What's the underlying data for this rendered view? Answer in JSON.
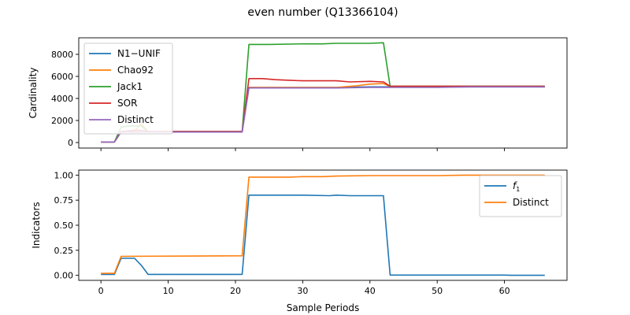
{
  "figure_title": "even number (Q13366104)",
  "chart_data": [
    {
      "type": "line",
      "xlabel": "",
      "ylabel": "Cardinality",
      "xlim": [
        -3.3,
        69.3
      ],
      "ylim": [
        -500,
        9500
      ],
      "xticks": [
        0,
        10,
        20,
        30,
        40,
        50,
        60
      ],
      "show_x_ticklabels": false,
      "yticks": [
        0,
        2000,
        4000,
        6000,
        8000
      ],
      "ytick_labels": [
        "0",
        "2000",
        "4000",
        "6000",
        "8000"
      ],
      "legend_position": "top-left",
      "series": [
        {
          "name": "N1−UNIF",
          "color": "#1f77b4",
          "x": [
            0,
            2,
            3,
            4,
            5,
            6,
            7,
            21,
            22,
            25,
            30,
            35,
            40,
            42,
            43,
            50,
            55,
            60,
            66
          ],
          "y": [
            50,
            50,
            950,
            950,
            950,
            950,
            950,
            950,
            5000,
            5000,
            5000,
            5000,
            5050,
            5050,
            5050,
            5050,
            5050,
            5050,
            5050
          ]
        },
        {
          "name": "Chao92",
          "color": "#ff7f0e",
          "x": [
            0,
            2,
            3,
            4,
            5,
            6,
            7,
            21,
            22,
            25,
            30,
            35,
            38,
            40,
            42,
            43,
            50,
            55,
            60,
            66
          ],
          "y": [
            50,
            50,
            1000,
            1050,
            1050,
            1700,
            1000,
            1000,
            5000,
            5000,
            5000,
            5000,
            5150,
            5300,
            5350,
            5100,
            5100,
            5100,
            5100,
            5100
          ]
        },
        {
          "name": "Jack1",
          "color": "#2ca02c",
          "x": [
            0,
            2,
            3,
            4,
            5,
            6,
            7,
            21,
            22,
            25,
            30,
            33,
            35,
            38,
            40,
            42,
            43,
            50,
            55,
            60,
            66
          ],
          "y": [
            50,
            50,
            1400,
            1500,
            1500,
            1500,
            1000,
            1000,
            8900,
            8900,
            8950,
            8950,
            9000,
            9000,
            9000,
            9050,
            5100,
            5100,
            5100,
            5100,
            5100
          ]
        },
        {
          "name": "SOR",
          "color": "#d62728",
          "x": [
            0,
            2,
            3,
            4,
            5,
            6,
            7,
            21,
            22,
            24,
            26,
            28,
            30,
            35,
            37,
            40,
            42,
            43,
            50,
            55,
            60,
            66
          ],
          "y": [
            50,
            50,
            1000,
            1050,
            1100,
            1100,
            1000,
            1000,
            5800,
            5800,
            5700,
            5650,
            5600,
            5600,
            5500,
            5550,
            5500,
            5100,
            5100,
            5100,
            5100,
            5100
          ]
        },
        {
          "name": "Distinct",
          "color": "#9467bd",
          "x": [
            0,
            2,
            3,
            21,
            22,
            30,
            35,
            40,
            43,
            50,
            55,
            60,
            66
          ],
          "y": [
            50,
            50,
            950,
            950,
            4950,
            4950,
            4950,
            5000,
            5000,
            5000,
            5050,
            5050,
            5050
          ]
        }
      ]
    },
    {
      "type": "line",
      "xlabel": "Sample Periods",
      "ylabel": "Indicators",
      "xlim": [
        -3.3,
        69.3
      ],
      "ylim": [
        -0.05,
        1.05
      ],
      "xticks": [
        0,
        10,
        20,
        30,
        40,
        50,
        60
      ],
      "xtick_labels": [
        "0",
        "10",
        "20",
        "30",
        "40",
        "50",
        "60"
      ],
      "show_x_ticklabels": true,
      "yticks": [
        0,
        0.25,
        0.5,
        0.75,
        1.0
      ],
      "ytick_labels": [
        "0.00",
        "0.25",
        "0.50",
        "0.75",
        "1.00"
      ],
      "legend_position": "top-right",
      "series": [
        {
          "name": "f1",
          "label_main": "f",
          "label_sub": "1",
          "color": "#1f77b4",
          "x": [
            0,
            2,
            3,
            5,
            6,
            7,
            21,
            22,
            30,
            34,
            35,
            37,
            42,
            43,
            50,
            60,
            61,
            66
          ],
          "y": [
            0.01,
            0.01,
            0.17,
            0.17,
            0.1,
            0.01,
            0.01,
            0.8,
            0.8,
            0.795,
            0.8,
            0.795,
            0.795,
            0.003,
            0.003,
            0.003,
            0.0,
            0.0
          ]
        },
        {
          "name": "Distinct",
          "color": "#ff7f0e",
          "x": [
            0,
            2,
            3,
            21,
            22,
            28,
            30,
            33,
            35,
            40,
            50,
            54,
            60,
            66
          ],
          "y": [
            0.02,
            0.02,
            0.19,
            0.195,
            0.98,
            0.98,
            0.985,
            0.985,
            0.99,
            0.995,
            0.995,
            1.0,
            1.0,
            1.0
          ]
        }
      ]
    }
  ]
}
